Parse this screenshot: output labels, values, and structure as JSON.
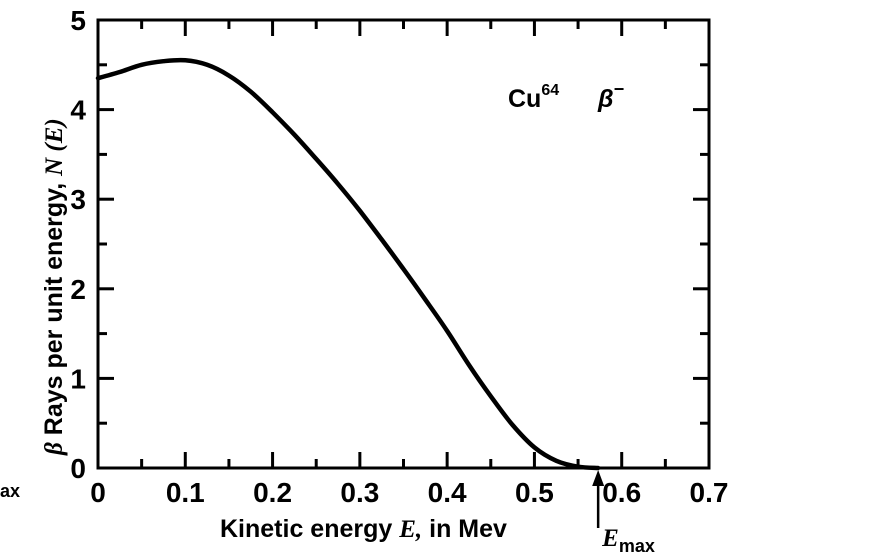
{
  "chart_data": {
    "type": "line",
    "ylabel_symbol": "β",
    "ylabel": "Rays per unit energy,",
    "ylabel_func": "N (E)",
    "xlabel": "Kinetic energy",
    "xlabel_var": "E,",
    "xlabel_unit": "in Mev",
    "xlim": [
      0,
      0.7
    ],
    "ylim": [
      0,
      5
    ],
    "x_ticks": [
      0,
      0.1,
      0.2,
      0.3,
      0.4,
      0.5,
      0.6,
      0.7
    ],
    "x_tick_labels": [
      "0",
      "0.1",
      "0.2",
      "0.3",
      "0.4",
      "0.5",
      "0.6",
      "0.7"
    ],
    "y_ticks": [
      0,
      1,
      2,
      3,
      4,
      5
    ],
    "y_tick_labels": [
      "0",
      "1",
      "2",
      "3",
      "4",
      "5"
    ],
    "grid": false,
    "series": [
      {
        "x": [
          0,
          0.025,
          0.05,
          0.075,
          0.1,
          0.125,
          0.15,
          0.175,
          0.2,
          0.225,
          0.25,
          0.275,
          0.3,
          0.325,
          0.35,
          0.375,
          0.4,
          0.425,
          0.45,
          0.475,
          0.5,
          0.525,
          0.55,
          0.573
        ],
        "y": [
          4.35,
          4.42,
          4.5,
          4.54,
          4.55,
          4.5,
          4.38,
          4.2,
          3.97,
          3.72,
          3.45,
          3.17,
          2.87,
          2.55,
          2.22,
          1.88,
          1.53,
          1.15,
          0.8,
          0.48,
          0.23,
          0.08,
          0.015,
          0
        ]
      }
    ],
    "annotations": {
      "isotope": "Cu",
      "isotope_mass": "64",
      "decay": "β",
      "decay_sign": "−",
      "emax_symbol": "E",
      "emax_sub": "max",
      "emax_x": 0.573,
      "left_fragment": "ax"
    }
  }
}
